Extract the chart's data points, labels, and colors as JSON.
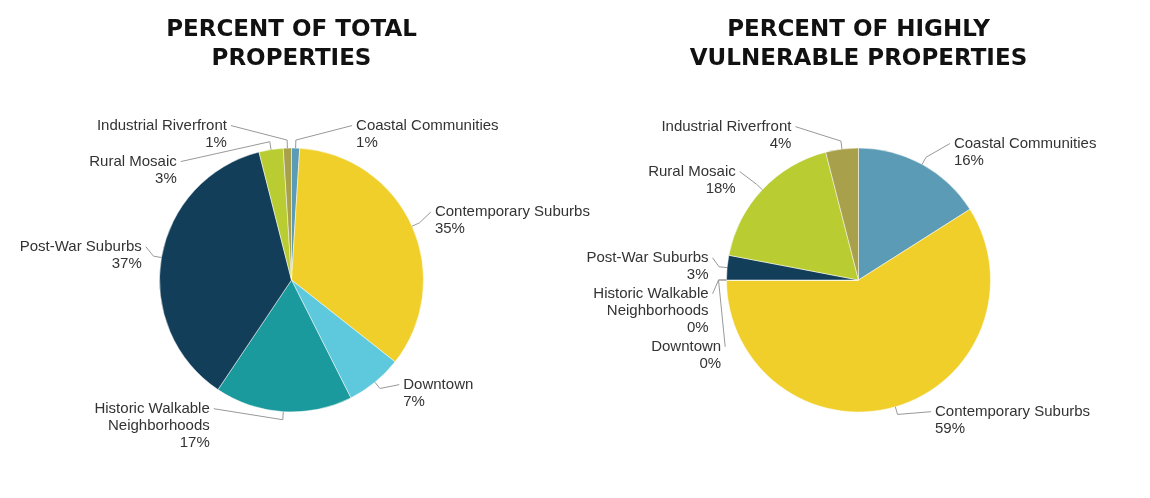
{
  "chart_data": [
    {
      "type": "pie",
      "title": "PERCENT OF TOTAL PROPERTIES",
      "categories": [
        "Coastal Communities",
        "Contemporary Suburbs",
        "Downtown",
        "Historic Walkable Neighborhoods",
        "Post-War Suburbs",
        "Rural Mosaic",
        "Industrial Riverfront"
      ],
      "values": [
        1,
        35,
        7,
        17,
        37,
        3,
        1
      ],
      "value_labels": [
        "1%",
        "35%",
        "7%",
        "17%",
        "37%",
        "3%",
        "1%"
      ],
      "colors": [
        "#5b9bb5",
        "#f0cf2a",
        "#5ec8dc",
        "#1a9a9c",
        "#123e5a",
        "#b9cc32",
        "#a8a04a"
      ]
    },
    {
      "type": "pie",
      "title": "PERCENT OF HIGHLY VULNERABLE PROPERTIES",
      "categories": [
        "Coastal Communities",
        "Contemporary Suburbs",
        "Downtown",
        "Historic Walkable Neighborhoods",
        "Post-War Suburbs",
        "Rural Mosaic",
        "Industrial Riverfront"
      ],
      "values": [
        16,
        59,
        0,
        0,
        3,
        18,
        4
      ],
      "value_labels": [
        "16%",
        "59%",
        "0%",
        "0%",
        "3%",
        "18%",
        "4%"
      ],
      "colors": [
        "#5b9bb5",
        "#f0cf2a",
        "#5ec8dc",
        "#1a9a9c",
        "#123e5a",
        "#b9cc32",
        "#a8a04a"
      ]
    }
  ]
}
